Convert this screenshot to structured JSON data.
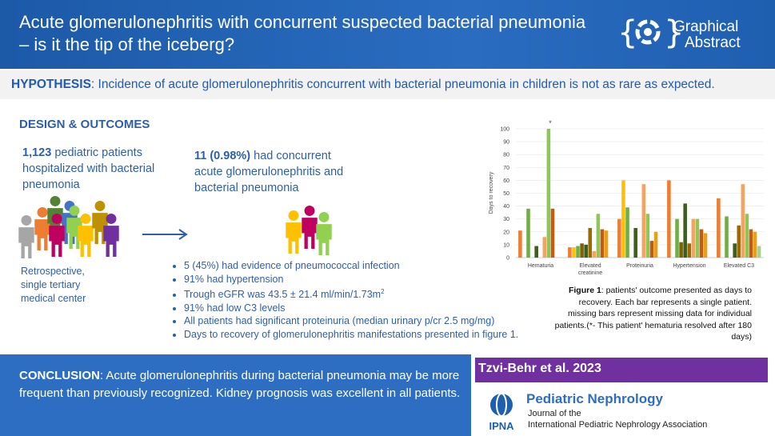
{
  "header": {
    "title": "Acute glomerulonephritis with concurrent suspected bacterial pneumonia – is it the tip of the iceberg?",
    "logo_line1": "Graphical",
    "logo_line2": "Abstract"
  },
  "hypothesis": {
    "label": "HYPOTHESIS",
    "text": ": Incidence of acute glomerulonephritis concurrent with bacterial pneumonia in children is not as rare as expected."
  },
  "design": {
    "heading": "DESIGN & OUTCOMES",
    "cohort_number": "1,123",
    "cohort_text": " pediatric patients hospitalized with bacterial pneumonia",
    "cases_number": "11 (0.98%)",
    "cases_text": " had concurrent acute glomerulonephritis and bacterial pneumonia",
    "setting": "Retrospective, single tertiary medical center",
    "bullets": [
      "5 (45%) had evidence of pneumococcal infection",
      "91% had hypertension",
      "Trough eGFR was 43.5 ± 21.4 ml/min/1.73m",
      "91% had low C3 levels",
      "All patients had significant proteinuria (median urinary p/cr 2.5 mg/mg)",
      "Days to recovery of glomerulonephritis manifestations presented in figure 1."
    ],
    "egfr_superscript": "2"
  },
  "chart_data": {
    "type": "bar",
    "y_label": "Days to recovery",
    "annotation": "*",
    "categories": [
      "Hematuria",
      "Elevated creatinine",
      "Proteinuria",
      "Hypertension",
      "Elevated C3"
    ],
    "series": [
      {
        "color": "#ed7d31",
        "values": [
          21,
          8,
          30,
          60,
          46
        ]
      },
      {
        "color": "#ffc000",
        "values": [
          null,
          8,
          60,
          null,
          null
        ]
      },
      {
        "color": "#70ad47",
        "values": [
          38,
          9,
          39,
          30,
          32
        ]
      },
      {
        "color": "#806000",
        "values": [
          null,
          11,
          null,
          12,
          null
        ]
      },
      {
        "color": "#3e5e1f",
        "values": [
          9,
          10,
          23,
          42,
          11
        ]
      },
      {
        "color": "#9c6b00",
        "values": [
          null,
          23,
          null,
          11,
          25
        ]
      },
      {
        "color": "#f4a460",
        "values": [
          16,
          5,
          57,
          30,
          57
        ]
      },
      {
        "color": "#8fc65a",
        "values": [
          100,
          34,
          34,
          30,
          34
        ]
      },
      {
        "color": "#c55a11",
        "values": [
          38,
          22,
          13,
          22,
          22
        ]
      },
      {
        "color": "#e6a118",
        "values": [
          null,
          21,
          20,
          19,
          20
        ]
      },
      {
        "color": "#a9d18e",
        "values": [
          null,
          null,
          null,
          null,
          9
        ]
      }
    ],
    "ylim": [
      0,
      100
    ],
    "yticks": [
      0,
      10,
      20,
      30,
      40,
      50,
      60,
      70,
      80,
      90,
      100
    ],
    "grid": true
  },
  "caption": {
    "label": "Figure 1",
    "text": ": patients' outcome presented as days to recovery. Each bar represents a single patient. missing bars represent missing data for individual patients.(*- This patient' hematuria resolved after 180 days)"
  },
  "conclusion": {
    "label": "CONCLUSION",
    "text": ": Acute glomerulonephritis during bacterial pneumonia may be more frequent than previously recognized. Kidney prognosis was excellent in all patients."
  },
  "citation": "Tzvi-Behr et al. 2023",
  "journal": {
    "name": "Pediatric Nephrology",
    "line1": "Journal of the",
    "line2": "International Pediatric Nephrology Association",
    "acronym": "IPNA"
  }
}
